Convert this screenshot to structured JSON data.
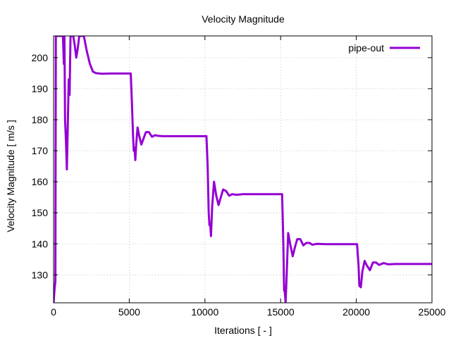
{
  "chart_data": {
    "type": "line",
    "title": "Velocity Magnitude",
    "xlabel": "Iterations [ - ]",
    "ylabel": "Velocity Magnitude [ m/s ]",
    "xlim": [
      0,
      25000
    ],
    "ylim": [
      121,
      207
    ],
    "xticks": [
      0,
      5000,
      10000,
      15000,
      20000,
      25000
    ],
    "yticks": [
      130,
      140,
      150,
      160,
      170,
      180,
      190,
      200
    ],
    "grid": true,
    "legend_position": "top-right",
    "series": [
      {
        "name": "pipe-out",
        "color": "#9400d3",
        "points": [
          [
            0,
            121
          ],
          [
            60,
            125
          ],
          [
            120,
            128
          ],
          [
            150,
            207
          ],
          [
            620,
            207
          ],
          [
            680,
            198
          ],
          [
            720,
            207
          ],
          [
            760,
            180
          ],
          [
            820,
            173
          ],
          [
            880,
            164
          ],
          [
            940,
            178
          ],
          [
            1000,
            193
          ],
          [
            1060,
            188
          ],
          [
            1120,
            207
          ],
          [
            1300,
            207
          ],
          [
            1400,
            204
          ],
          [
            1500,
            200
          ],
          [
            1600,
            203
          ],
          [
            1700,
            207
          ],
          [
            2000,
            207
          ],
          [
            2200,
            202
          ],
          [
            2400,
            198
          ],
          [
            2600,
            195.5
          ],
          [
            2800,
            195
          ],
          [
            3200,
            194.8
          ],
          [
            3800,
            194.9
          ],
          [
            5100,
            194.9
          ],
          [
            5180,
            185
          ],
          [
            5250,
            175
          ],
          [
            5300,
            170
          ],
          [
            5350,
            171
          ],
          [
            5400,
            167
          ],
          [
            5460,
            172
          ],
          [
            5550,
            177.5
          ],
          [
            5650,
            175
          ],
          [
            5800,
            172
          ],
          [
            5950,
            174
          ],
          [
            6100,
            176
          ],
          [
            6300,
            176
          ],
          [
            6500,
            174.5
          ],
          [
            6700,
            175
          ],
          [
            6900,
            174.8
          ],
          [
            7200,
            174.7
          ],
          [
            8000,
            174.7
          ],
          [
            10100,
            174.7
          ],
          [
            10180,
            165
          ],
          [
            10250,
            150
          ],
          [
            10300,
            146
          ],
          [
            10350,
            146.5
          ],
          [
            10400,
            142.5
          ],
          [
            10480,
            152
          ],
          [
            10600,
            160
          ],
          [
            10750,
            155.5
          ],
          [
            10900,
            152.5
          ],
          [
            11050,
            155
          ],
          [
            11200,
            157.5
          ],
          [
            11400,
            157
          ],
          [
            11600,
            155.5
          ],
          [
            11800,
            156
          ],
          [
            12100,
            155.8
          ],
          [
            12500,
            156
          ],
          [
            15100,
            156
          ],
          [
            15180,
            140
          ],
          [
            15230,
            125
          ],
          [
            15280,
            124.5
          ],
          [
            15330,
            121
          ],
          [
            15400,
            130
          ],
          [
            15500,
            143.5
          ],
          [
            15650,
            139.5
          ],
          [
            15800,
            136
          ],
          [
            15950,
            139
          ],
          [
            16100,
            141.5
          ],
          [
            16300,
            141.5
          ],
          [
            16500,
            139.5
          ],
          [
            16700,
            140.3
          ],
          [
            16900,
            140.3
          ],
          [
            17100,
            139.7
          ],
          [
            17400,
            140
          ],
          [
            18000,
            139.9
          ],
          [
            20050,
            139.9
          ],
          [
            20150,
            133
          ],
          [
            20200,
            126.5
          ],
          [
            20300,
            126
          ],
          [
            20400,
            131
          ],
          [
            20550,
            134.5
          ],
          [
            20700,
            133
          ],
          [
            20900,
            131.5
          ],
          [
            21100,
            134
          ],
          [
            21300,
            134
          ],
          [
            21500,
            133.2
          ],
          [
            21800,
            133.8
          ],
          [
            22100,
            133.4
          ],
          [
            22600,
            133.5
          ],
          [
            25000,
            133.5
          ]
        ]
      }
    ]
  }
}
